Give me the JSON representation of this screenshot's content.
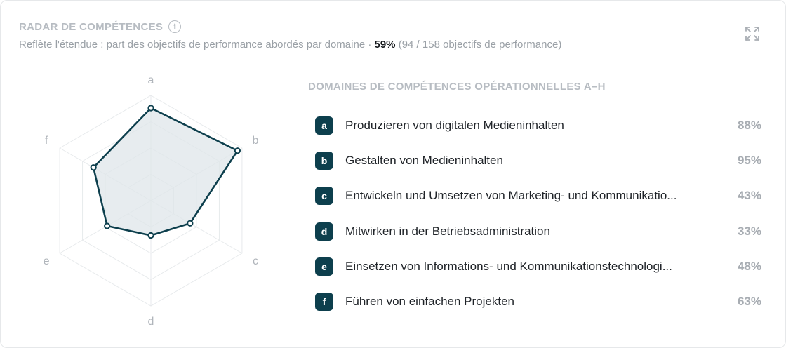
{
  "card": {
    "title": "RADAR DE COMPÉTENCES",
    "subtitle_prefix": "Reflète l'étendue : part des objectifs de performance abordés par domaine · ",
    "subtitle_pct": "59%",
    "subtitle_suffix": " (94 / 158 objectifs de performance)",
    "info_icon": "info-icon",
    "expand_icon": "expand-icon"
  },
  "legend": {
    "title": "DOMAINES DE COMPÉTENCES OPÉRATIONNELLES A–H",
    "items": [
      {
        "letter": "a",
        "name": "Produzieren von digitalen Medieninhalten",
        "pct": "88%"
      },
      {
        "letter": "b",
        "name": "Gestalten von Medieninhalten",
        "pct": "95%"
      },
      {
        "letter": "c",
        "name": "Entwickeln und Umsetzen von Marketing- und Kommunikatio...",
        "pct": "43%"
      },
      {
        "letter": "d",
        "name": "Mitwirken in der Betriebsadministration",
        "pct": "33%"
      },
      {
        "letter": "e",
        "name": "Einsetzen von Informations- und Kommunikationstechnologi...",
        "pct": "48%"
      },
      {
        "letter": "f",
        "name": "Führen von einfachen Projekten",
        "pct": "63%"
      }
    ]
  },
  "chart_data": {
    "type": "radar",
    "axes": [
      "a",
      "b",
      "c",
      "d",
      "e",
      "f"
    ],
    "values": [
      88,
      95,
      43,
      33,
      48,
      63
    ],
    "range": [
      0,
      100
    ],
    "grid_levels": 4,
    "colors": {
      "line": "#0d3f4d",
      "fill": "#dfe6ea",
      "grid": "#e7eaec",
      "point_fill": "#ffffff"
    }
  }
}
